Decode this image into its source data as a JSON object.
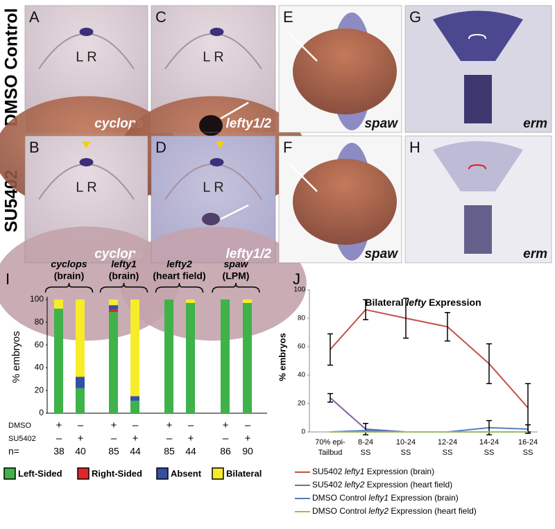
{
  "row_labels": [
    "DMSO Control",
    "SU5402"
  ],
  "panels": [
    {
      "letter": "A",
      "gene": "cyclops",
      "lr": "L R"
    },
    {
      "letter": "C",
      "gene": "lefty1/2",
      "lr": "L R"
    },
    {
      "letter": "E",
      "gene": "spaw"
    },
    {
      "letter": "G",
      "gene": "erm"
    },
    {
      "letter": "B",
      "gene": "cyclops",
      "lr": "L R"
    },
    {
      "letter": "D",
      "gene": "lefty1/2",
      "lr": "L R"
    },
    {
      "letter": "F",
      "gene": "spaw"
    },
    {
      "letter": "H",
      "gene": "erm"
    }
  ],
  "chart_data": [
    {
      "type": "stacked_bar",
      "letter": "I",
      "ylabel": "% embryos",
      "groups": [
        {
          "gene": "cyclops",
          "site": "(brain)"
        },
        {
          "gene": "lefty1",
          "site": "(brain)"
        },
        {
          "gene": "lefty2",
          "site": "(heart field)"
        },
        {
          "gene": "spaw",
          "site": "(LPM)"
        }
      ],
      "treatment_rows": [
        {
          "label": "DMSO",
          "marks": [
            "+",
            "–",
            "+",
            "–",
            "+",
            "–",
            "+",
            "–"
          ]
        },
        {
          "label": "SU5402",
          "marks": [
            "–",
            "+",
            "–",
            "+",
            "–",
            "+",
            "–",
            "+"
          ]
        }
      ],
      "n_label": "n=",
      "n": [
        38,
        40,
        85,
        44,
        85,
        44,
        86,
        90
      ],
      "ylim": [
        0,
        100
      ],
      "yticks": [
        0,
        20,
        40,
        60,
        80,
        100
      ],
      "series": [
        {
          "name": "Left-Sided",
          "color": "#3fb24a",
          "values": [
            92,
            22,
            89,
            11,
            100,
            97,
            100,
            97
          ]
        },
        {
          "name": "Right-Sided",
          "color": "#e0262b",
          "values": [
            0,
            0,
            2,
            0,
            0,
            0,
            0,
            0
          ]
        },
        {
          "name": "Absent",
          "color": "#3450a4",
          "values": [
            0,
            10,
            4,
            4,
            0,
            0,
            0,
            0
          ]
        },
        {
          "name": "Bilateral",
          "color": "#f7ec2a",
          "values": [
            8,
            68,
            5,
            85,
            0,
            3,
            0,
            3
          ]
        }
      ]
    },
    {
      "type": "line",
      "letter": "J",
      "title_parts": [
        "Bilateral ",
        "lefty",
        " Expression"
      ],
      "ylabel": "% embryos",
      "categories": [
        [
          "70% epi-",
          "Tailbud"
        ],
        [
          "8-24",
          "SS"
        ],
        [
          "10-24",
          "SS"
        ],
        [
          "12-24",
          "SS"
        ],
        [
          "14-24",
          "SS"
        ],
        [
          "16-24",
          "SS"
        ]
      ],
      "ylim": [
        0,
        100
      ],
      "yticks": [
        0,
        20,
        40,
        60,
        80,
        100
      ],
      "series": [
        {
          "name_parts": [
            "SU5402  ",
            "lefty1",
            " Expression (brain)"
          ],
          "color": "#c0504d",
          "values": [
            58,
            86,
            80,
            74,
            48,
            17
          ],
          "errors": [
            11,
            7,
            14,
            10,
            14,
            17
          ]
        },
        {
          "name_parts": [
            "SU5402 ",
            "lefty2",
            " Expression (heart field)"
          ],
          "color": "#8064a2",
          "values": [
            24,
            2,
            0,
            0,
            0,
            0
          ],
          "errors": [
            3,
            4,
            0,
            0,
            0,
            0
          ]
        },
        {
          "name_parts": [
            "DMSO Control ",
            "lefty1",
            " Expression (brain)"
          ],
          "color": "#4f81bd",
          "values": [
            0,
            1,
            0,
            0,
            3,
            2
          ],
          "errors": [
            0,
            0,
            0,
            0,
            5,
            3
          ]
        },
        {
          "name_parts": [
            "DMSO Control ",
            "lefty2",
            " Expression (heart field)"
          ],
          "color": "#9bbb59",
          "values": [
            0,
            0,
            0,
            0,
            0,
            0
          ],
          "errors": [
            0,
            0,
            0,
            0,
            0,
            0
          ]
        }
      ]
    }
  ]
}
